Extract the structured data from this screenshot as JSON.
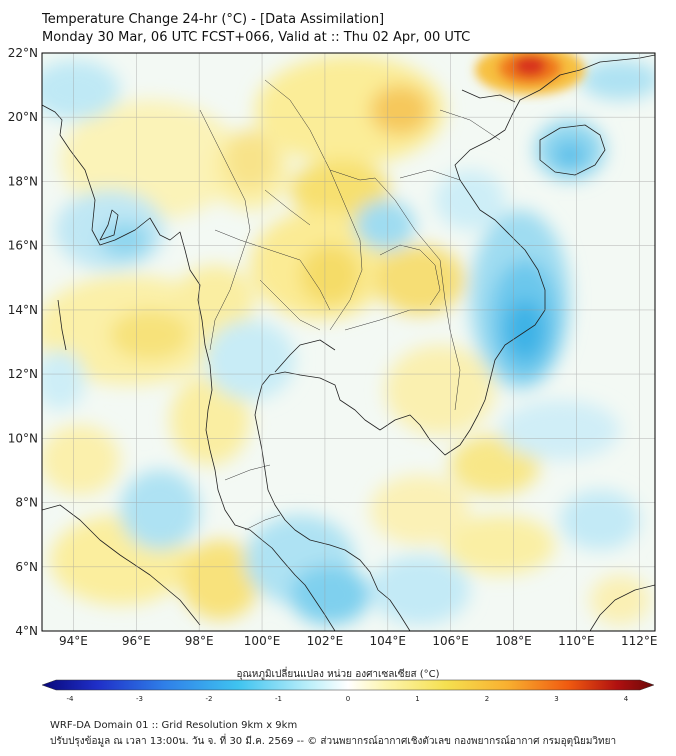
{
  "header": {
    "title": "Temperature Change 24-hr (°C) - [Data Assimilation]",
    "subtitle": "Monday 30 Mar, 06 UTC FCST+066, Valid at :: Thu 02 Apr, 00 UTC"
  },
  "map": {
    "lat_range": [
      4,
      22
    ],
    "lon_range": [
      93,
      112.5
    ],
    "lat_labels": [
      "22°N",
      "20°N",
      "18°N",
      "16°N",
      "14°N",
      "12°N",
      "10°N",
      "8°N",
      "6°N",
      "4°N"
    ],
    "lat_values": [
      22,
      20,
      18,
      16,
      14,
      12,
      10,
      8,
      6,
      4
    ],
    "lon_labels": [
      "94°E",
      "96°E",
      "98°E",
      "100°E",
      "102°E",
      "104°E",
      "106°E",
      "108°E",
      "110°E",
      "112°E"
    ],
    "lon_values": [
      94,
      96,
      98,
      100,
      102,
      104,
      106,
      108,
      110,
      112
    ]
  },
  "colorbar": {
    "title": "อุณหภูมิเปลี่ยนแปลง หน่วย องศาเซลเซียส (°C)",
    "ticks": [
      "-4",
      "-3",
      "-2",
      "-1",
      "0",
      "1",
      "2",
      "3",
      "4"
    ],
    "tick_values": [
      -4,
      -3,
      -2,
      -1,
      0,
      1,
      2,
      3,
      4
    ],
    "min": -4,
    "max": 4,
    "colors": [
      "#08087a",
      "#1f2fc8",
      "#2f7fe8",
      "#3fc3f0",
      "#bff0fa",
      "#ffffff",
      "#fdf5b0",
      "#f5e050",
      "#f8b030",
      "#f05a10",
      "#b01010",
      "#6a0808"
    ]
  },
  "footer": {
    "line1": "WRF-DA Domain 01 :: Grid Resolution 9km x 9km",
    "line2": "ปรับปรุงข้อมูล ณ เวลา 13:00น. วัน จ. ที่ 30 มี.ค. 2569 -- © ส่วนพยากรณ์อากาศเชิงตัวเลข กองพยากรณ์อากาศ กรมอุตุนิยมวิทยา"
  }
}
